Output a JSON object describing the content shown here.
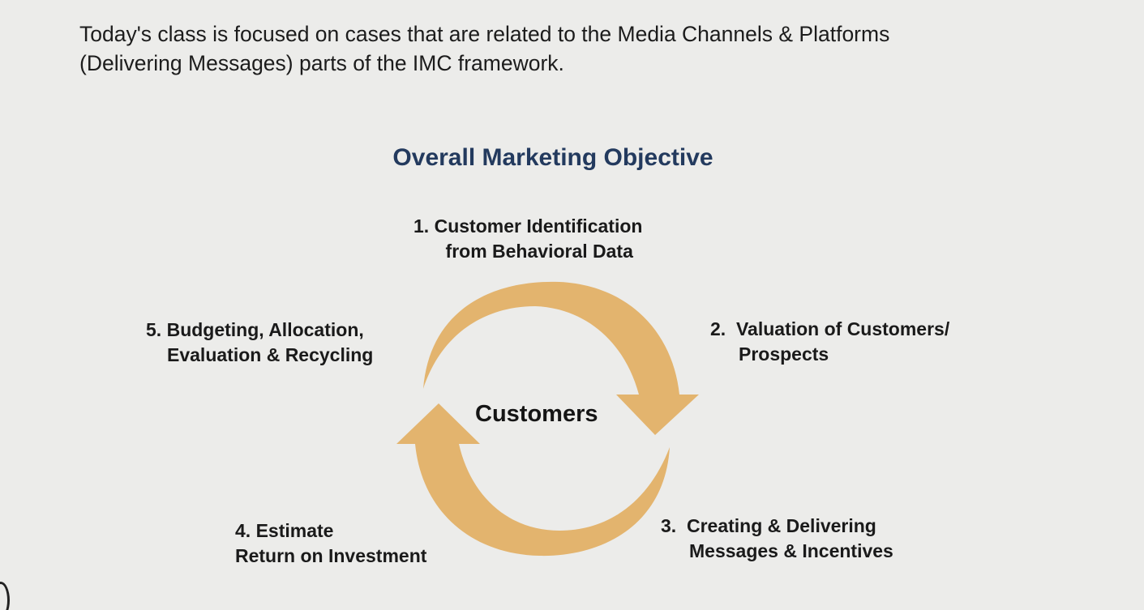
{
  "intro": {
    "line1": "Today's class is focused on cases that are related to the Media Channels & Platforms",
    "line2": "(Delivering Messages) parts of the IMC framework."
  },
  "diagram": {
    "heading": "Overall Marketing Objective",
    "center": "Customers",
    "arrow_color": "#e3b46e",
    "heading_color": "#233a5e",
    "steps": [
      {
        "num": "1.",
        "line1": "Customer Identification",
        "line2": "from Behavioral Data"
      },
      {
        "num": "2.",
        "line1": "Valuation of Customers/",
        "line2": "Prospects"
      },
      {
        "num": "3.",
        "line1": "Creating & Delivering",
        "line2": "Messages & Incentives"
      },
      {
        "num": "4.",
        "line1": "Estimate",
        "line2": "Return on Investment"
      },
      {
        "num": "5.",
        "line1": "Budgeting, Allocation,",
        "line2": "Evaluation & Recycling"
      }
    ]
  }
}
